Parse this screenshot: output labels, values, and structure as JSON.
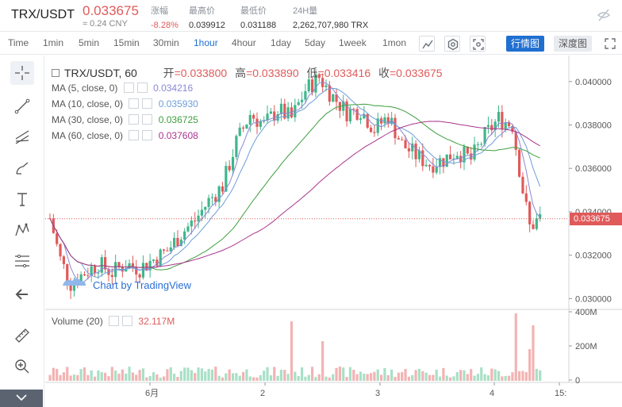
{
  "ticker": {
    "pair": "TRX/USDT",
    "price": "0.033675",
    "cny": "≈ 0.24 CNY",
    "stats": [
      {
        "label": "涨幅",
        "value": "-8.28%",
        "down": true
      },
      {
        "label": "最高价",
        "value": "0.039912",
        "down": false
      },
      {
        "label": "最低价",
        "value": "0.031188",
        "down": false
      },
      {
        "label": "24H量",
        "value": "2,262,707,980 TRX",
        "down": false
      }
    ]
  },
  "toolbar": {
    "intervals": [
      "Time",
      "1min",
      "5min",
      "15min",
      "30min",
      "1hour",
      "4hour",
      "1day",
      "5day",
      "1week",
      "1mon"
    ],
    "active_interval": "1hour",
    "modes": [
      "行情图",
      "深度图"
    ],
    "active_mode": "行情图"
  },
  "legend": {
    "symbol": "TRX/USDT, 60",
    "ohlc": [
      {
        "label": "开",
        "value": "=0.033800"
      },
      {
        "label": "高",
        "value": "=0.033890"
      },
      {
        "label": "低",
        "value": "=0.033416"
      },
      {
        "label": "收",
        "value": "=0.033675"
      }
    ],
    "mas": [
      {
        "label": "MA (5, close, 0)",
        "value": "0.034216",
        "color": "#8b86d8"
      },
      {
        "label": "MA (10, close, 0)",
        "value": "0.035930",
        "color": "#6d9ed8"
      },
      {
        "label": "MA (30, close, 0)",
        "value": "0.036725",
        "color": "#3e9e3e"
      },
      {
        "label": "MA (60, close, 0)",
        "value": "0.037608",
        "color": "#a8358c"
      }
    ],
    "volume_label": "Volume (20)",
    "volume_value": "32.117M",
    "tradingview": "Chart by TradingView"
  },
  "chart_data": {
    "type": "candlestick",
    "price_axis_ticks": [
      "0.040000",
      "0.038000",
      "0.036000",
      "0.034000",
      "0.032000",
      "0.030000"
    ],
    "price_axis_values": [
      0.04,
      0.038,
      0.036,
      0.034,
      0.032,
      0.03
    ],
    "volume_axis_ticks": [
      "400M",
      "200M",
      "0"
    ],
    "time_axis_ticks": [
      "6月",
      "2",
      "3",
      "4",
      "15:"
    ],
    "last_price": "0.033675",
    "ylim": [
      0.0295,
      0.0412
    ],
    "up_color": "#3fb68b",
    "down_color": "#e05a5a"
  }
}
